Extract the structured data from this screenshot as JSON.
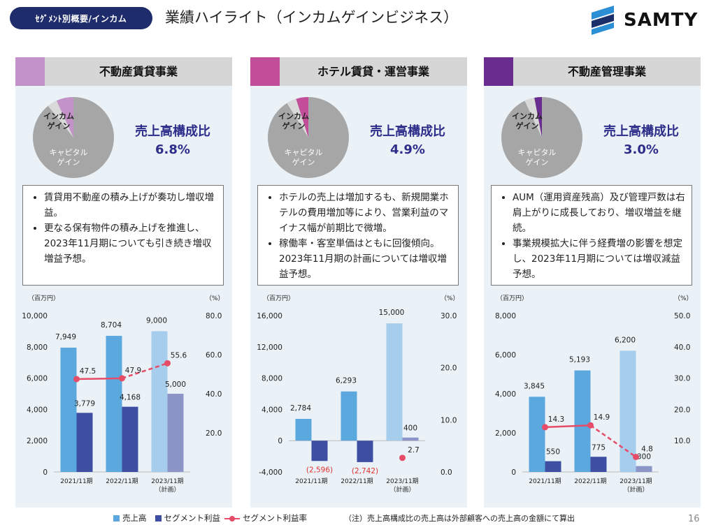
{
  "header": {
    "tag": "ｾｸﾞﾒﾝﾄ別概要/インカム",
    "title": "業績ハイライト（インカムゲインビジネス）"
  },
  "brand": {
    "name": "SAMTY"
  },
  "ratio_title": "売上高構成比",
  "pie_labels": {
    "income": "インカム\nゲイン",
    "income_line1": "インカム",
    "income_line2": "ゲイン",
    "capital_line1": "キャピタル",
    "capital_line2": "ゲイン"
  },
  "colors": {
    "bar_sales": "#5aa8de",
    "bar_sales_plan": "#a7cdec",
    "bar_profit": "#3e4ea3",
    "bar_profit_plan": "#8b95c8",
    "line": "#e54c68",
    "pie_main": "#a6a6a6",
    "pie_light": "#d9d9d9"
  },
  "panels": [
    {
      "title": "不動産賃貸事業",
      "swatch": "#c392c8",
      "pie_color": "#c392c8",
      "ratio": "6.8%",
      "bullets": [
        "賃貸用不動産の積み上げが奏功し増収増益。",
        "更なる保有物件の積み上げを推進し、2023年11月期についても引き続き増収増益予想。"
      ],
      "chart_data": {
        "type": "bar",
        "categories": [
          "2021/11期",
          "2022/11期",
          "2023/11期\n（計画）"
        ],
        "category_labels": [
          "2021/11期",
          "2022/11期",
          "2023/11期",
          "（計画）"
        ],
        "left_unit": "（百万円）",
        "right_unit": "（%）",
        "left_ticks": [
          "10,000",
          "8,000",
          "6,000",
          "4,000",
          "2,000",
          "0"
        ],
        "right_ticks": [
          "80.0",
          "60.0",
          "40.0",
          "20.0"
        ],
        "ylim": [
          0,
          10000
        ],
        "y2lim": [
          0,
          80
        ],
        "series": [
          {
            "name": "売上高",
            "values": [
              7949,
              8704,
              9000
            ],
            "labels": [
              "7,949",
              "8,704",
              "9,000"
            ]
          },
          {
            "name": "セグメント利益",
            "values": [
              3779,
              4168,
              5000
            ],
            "labels": [
              "3,779",
              "4,168",
              "5,000"
            ]
          },
          {
            "name": "セグメント利益率",
            "values": [
              47.5,
              47.9,
              55.6
            ],
            "labels": [
              "47.5",
              "47.9",
              "55.6"
            ]
          }
        ]
      }
    },
    {
      "title": "ホテル賃貸・運営事業",
      "swatch": "#c24d99",
      "pie_color": "#c24d99",
      "ratio": "4.9%",
      "bullets": [
        "ホテルの売上は増加するも、新規開業ホテルの費用増加等により、営業利益のマイナス幅が前期比で微増。",
        "稼働率・客室単価はともに回復傾向。2023年11月期の計画については増収増益予想。"
      ],
      "chart_data": {
        "type": "bar",
        "categories": [
          "2021/11期",
          "2022/11期",
          "2023/11期\n（計画）"
        ],
        "category_labels": [
          "2021/11期",
          "2022/11期",
          "2023/11期",
          "（計画）"
        ],
        "left_unit": "（百万円）",
        "right_unit": "（%）",
        "left_ticks": [
          "16,000",
          "12,000",
          "8,000",
          "4,000",
          "0",
          "-4,000"
        ],
        "right_ticks": [
          "30.0",
          "20.0",
          "10.0",
          "0.0"
        ],
        "ylim": [
          -4000,
          16000
        ],
        "y2lim": [
          0,
          30
        ],
        "series": [
          {
            "name": "売上高",
            "values": [
              2784,
              6293,
              15000
            ],
            "labels": [
              "2,784",
              "6,293",
              "15,000"
            ]
          },
          {
            "name": "セグメント利益",
            "values": [
              -2596,
              -2742,
              400
            ],
            "labels": [
              "(2,596)",
              "(2,742)",
              "400"
            ]
          },
          {
            "name": "セグメント利益率",
            "values": [
              null,
              null,
              2.7
            ],
            "labels": [
              "",
              "",
              "2.7"
            ]
          }
        ]
      }
    },
    {
      "title": "不動産管理事業",
      "swatch": "#6a2c8f",
      "pie_color": "#6a2c8f",
      "ratio": "3.0%",
      "bullets": [
        "AUM（運用資産残高）及び管理戸数は右肩上がりに成長しており、増収増益を継続。",
        "事業規模拡大に伴う経費増の影響を想定し、2023年11月期については増収減益予想。"
      ],
      "chart_data": {
        "type": "bar",
        "categories": [
          "2021/11期",
          "2022/11期",
          "2023/11期\n（計画）"
        ],
        "category_labels": [
          "2021/11期",
          "2022/11期",
          "2023/11期",
          "（計画）"
        ],
        "left_unit": "（百万円）",
        "right_unit": "（%）",
        "left_ticks": [
          "8,000",
          "6,000",
          "4,000",
          "2,000",
          "0"
        ],
        "right_ticks": [
          "50.0",
          "40.0",
          "30.0",
          "20.0",
          "10.0"
        ],
        "ylim": [
          0,
          8000
        ],
        "y2lim": [
          0,
          50
        ],
        "series": [
          {
            "name": "売上高",
            "values": [
              3845,
              5193,
              6200
            ],
            "labels": [
              "3,845",
              "5,193",
              "6,200"
            ]
          },
          {
            "name": "セグメント利益",
            "values": [
              550,
              775,
              300
            ],
            "labels": [
              "550",
              "775",
              "300"
            ]
          },
          {
            "name": "セグメント利益率",
            "values": [
              14.3,
              14.9,
              4.8
            ],
            "labels": [
              "14.3",
              "14.9",
              "4.8"
            ]
          }
        ]
      }
    }
  ],
  "legend": {
    "sales": "売上高",
    "profit": "セグメント利益",
    "margin": "セグメント利益率"
  },
  "footnote": "（注）売上高構成比の売上高は外部顧客への売上高の金額にて算出",
  "page_number": "16"
}
